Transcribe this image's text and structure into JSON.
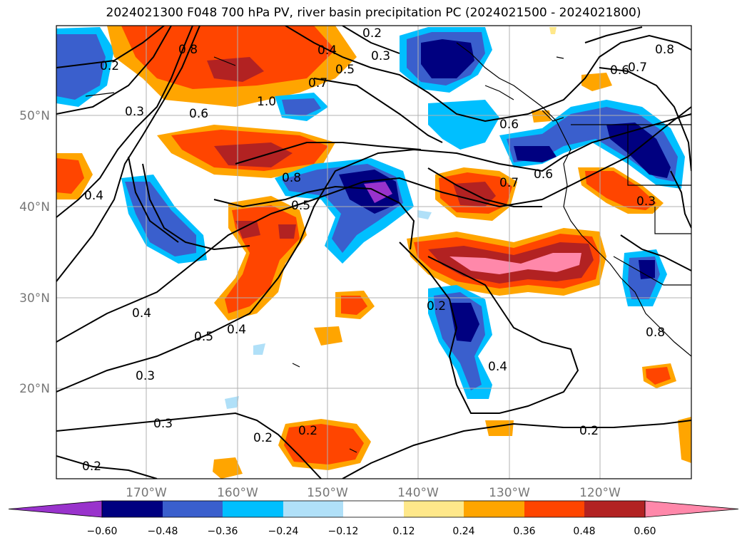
{
  "title": "2024021300 F048 700 hPa PV, river basin precipitation PC (2024021500 - 2024021800)",
  "latitude_labels": [
    "50°N",
    "40°N",
    "30°N",
    "20°N"
  ],
  "longitude_labels": [
    "170°W",
    "160°W",
    "150°W",
    "140°W",
    "130°W",
    "120°W"
  ],
  "colorbar": {
    "tick_labels": [
      "−0.60",
      "−0.48",
      "−0.36",
      "−0.24",
      "−0.12",
      "0.12",
      "0.24",
      "0.36",
      "0.48",
      "0.60"
    ],
    "colors": [
      "#9933cc",
      "#000080",
      "#3a5fcd",
      "#00bfff",
      "#b0e0f8",
      "#ffffff",
      "#ffe88a",
      "#ffa500",
      "#ff4500",
      "#b22222",
      "#ff88aa"
    ]
  },
  "contour_labels": [
    "0.2",
    "0.3",
    "0.4",
    "0.5",
    "0.6",
    "0.7",
    "0.8",
    "1.0"
  ],
  "colors": {
    "grid": "#b0b0b0",
    "contour": "#000000",
    "coastline": "#000000"
  }
}
